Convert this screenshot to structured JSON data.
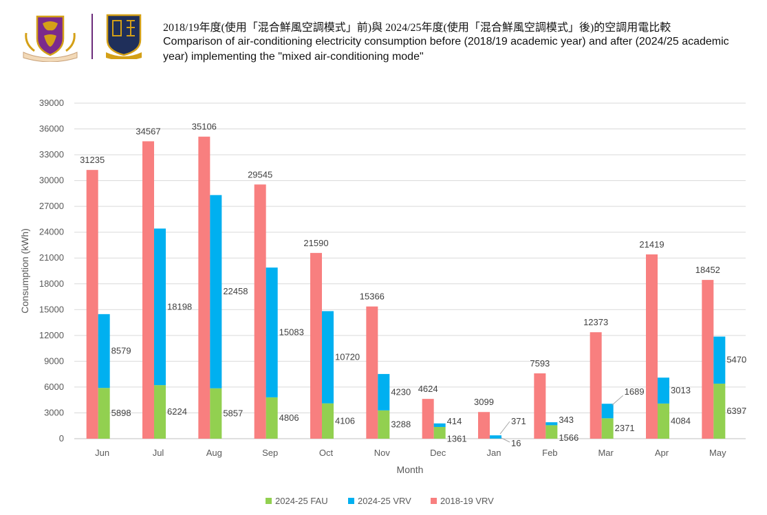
{
  "header": {
    "title_zh": "2018/19年度(使用「混合鮮風空調模式」前)與 2024/25年度(使用「混合鮮風空調模式」後)的空調用電比較",
    "title_en": "Comparison of air-conditioning electricity consumption before (2018/19 academic year) and after (2024/25 academic year) implementing  the \"mixed air-conditioning mode\"",
    "logo_left_colors": {
      "primary": "#7b2a8c",
      "accent": "#d4a017"
    },
    "logo_right_colors": {
      "primary": "#1f2f5a",
      "accent": "#d4a017"
    }
  },
  "chart_data": {
    "type": "bar",
    "title": "",
    "xlabel": "Month",
    "ylabel": "Consumption (kWh)",
    "ylim": [
      0,
      39000
    ],
    "yticks": [
      0,
      3000,
      6000,
      9000,
      12000,
      15000,
      18000,
      21000,
      24000,
      27000,
      30000,
      33000,
      36000,
      39000
    ],
    "grid": true,
    "legend_position": "bottom",
    "categories": [
      "Jun",
      "Jul",
      "Aug",
      "Sep",
      "Oct",
      "Nov",
      "Dec",
      "Jan",
      "Feb",
      "Mar",
      "Apr",
      "May"
    ],
    "series": [
      {
        "name": "2018-19 VRV",
        "color": "#f87f7f",
        "values": [
          31235,
          34567,
          35106,
          29545,
          21590,
          15366,
          4624,
          3099,
          7593,
          12373,
          21419,
          18452
        ]
      },
      {
        "name": "2024-25 FAU",
        "color": "#92d050",
        "values": [
          5898,
          6224,
          5857,
          4806,
          4106,
          3288,
          1361,
          16,
          1566,
          2371,
          4084,
          6397
        ]
      },
      {
        "name": "2024-25 VRV",
        "color": "#00b0f0",
        "values": [
          8579,
          18198,
          22458,
          15083,
          10720,
          4230,
          414,
          371,
          343,
          1689,
          3013,
          5470
        ]
      }
    ],
    "stacked_groups": [
      [
        "2018-19 VRV"
      ],
      [
        "2024-25 FAU",
        "2024-25 VRV"
      ]
    ],
    "legend_order": [
      "2024-25 FAU",
      "2024-25 VRV",
      "2018-19 VRV"
    ]
  }
}
